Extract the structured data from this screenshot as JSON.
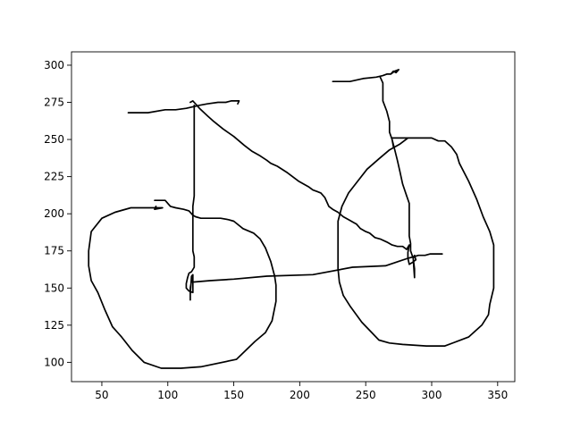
{
  "chart_data": {
    "type": "line",
    "title": "",
    "xlabel": "",
    "ylabel": "",
    "xlim": [
      27,
      363
    ],
    "ylim": [
      87,
      309
    ],
    "xticks": [
      50,
      100,
      150,
      200,
      250,
      300,
      350
    ],
    "yticks": [
      100,
      125,
      150,
      175,
      200,
      225,
      250,
      275,
      300
    ],
    "grid": false,
    "legend": "none",
    "line_color": "#000000",
    "series": [
      {
        "points": [
          [
            70,
            268
          ],
          [
            85,
            268
          ],
          [
            98,
            270
          ],
          [
            106,
            270
          ],
          [
            114,
            271
          ],
          [
            124,
            273
          ],
          [
            130,
            274
          ],
          [
            138,
            275
          ],
          [
            144,
            275
          ],
          [
            148,
            276
          ],
          [
            152,
            276
          ],
          [
            154,
            276
          ],
          [
            153,
            274
          ]
        ]
      },
      {
        "points": [
          [
            225,
            289
          ],
          [
            238,
            289
          ],
          [
            248,
            291
          ],
          [
            258,
            292
          ],
          [
            263,
            293
          ],
          [
            266,
            294
          ],
          [
            269,
            294
          ],
          [
            272,
            296
          ],
          [
            275,
            297
          ],
          [
            273,
            295
          ],
          [
            271,
            296
          ],
          [
            269,
            294
          ]
        ]
      },
      {
        "points": [
          [
            261,
            292
          ],
          [
            263,
            288
          ],
          [
            263,
            283
          ],
          [
            263,
            276
          ],
          [
            266,
            269
          ],
          [
            268,
            262
          ],
          [
            268,
            255
          ],
          [
            270,
            250
          ],
          [
            271,
            245
          ],
          [
            270,
            250
          ],
          [
            272,
            243
          ],
          [
            274,
            236
          ],
          [
            276,
            228
          ],
          [
            278,
            220
          ],
          [
            281,
            212
          ],
          [
            283,
            207
          ],
          [
            283,
            195
          ],
          [
            283,
            185
          ],
          [
            284,
            180
          ],
          [
            284,
            175
          ],
          [
            286,
            170
          ],
          [
            287,
            163
          ],
          [
            287,
            157
          ],
          [
            286,
            170
          ],
          [
            287,
            172
          ],
          [
            288,
            169
          ],
          [
            285,
            167
          ],
          [
            283,
            166
          ],
          [
            282,
            170
          ],
          [
            282,
            174
          ],
          [
            283,
            179
          ],
          [
            281,
            176
          ],
          [
            278,
            178
          ],
          [
            274,
            178
          ],
          [
            270,
            179
          ],
          [
            266,
            181
          ],
          [
            261,
            183
          ],
          [
            257,
            184
          ],
          [
            253,
            187
          ],
          [
            250,
            188
          ],
          [
            246,
            190
          ],
          [
            243,
            193
          ],
          [
            241,
            194
          ],
          [
            237,
            196
          ],
          [
            233,
            198
          ],
          [
            229,
            201
          ],
          [
            225,
            203
          ],
          [
            222,
            205
          ],
          [
            219,
            211
          ],
          [
            216,
            214
          ],
          [
            213,
            215
          ],
          [
            210,
            216
          ],
          [
            207,
            218
          ],
          [
            199,
            222
          ],
          [
            190,
            228
          ],
          [
            183,
            232
          ],
          [
            178,
            234
          ],
          [
            175,
            236
          ],
          [
            170,
            239
          ],
          [
            164,
            242
          ],
          [
            158,
            246
          ],
          [
            150,
            252
          ],
          [
            142,
            257
          ],
          [
            135,
            262
          ],
          [
            130,
            266
          ],
          [
            124,
            271
          ],
          [
            119,
            276
          ],
          [
            117,
            275
          ]
        ]
      },
      {
        "points": [
          [
            120,
            273
          ],
          [
            120,
            268
          ],
          [
            120,
            255
          ],
          [
            120,
            235
          ],
          [
            120,
            212
          ],
          [
            119,
            205
          ],
          [
            119,
            195
          ],
          [
            119,
            185
          ],
          [
            119,
            175
          ],
          [
            120,
            171
          ],
          [
            120,
            164
          ],
          [
            118,
            161
          ],
          [
            116,
            160
          ],
          [
            115,
            157
          ],
          [
            114,
            153
          ],
          [
            114,
            150
          ],
          [
            116,
            148
          ],
          [
            119,
            147
          ],
          [
            119,
            155
          ],
          [
            119,
            159
          ],
          [
            118,
            158
          ],
          [
            117,
            146
          ],
          [
            117,
            142
          ],
          [
            117,
            150
          ],
          [
            118,
            155
          ],
          [
            119,
            154
          ],
          [
            132,
            155
          ],
          [
            150,
            156
          ],
          [
            175,
            158
          ],
          [
            210,
            159
          ],
          [
            240,
            164
          ],
          [
            265,
            165
          ],
          [
            275,
            168
          ],
          [
            282,
            170
          ],
          [
            286,
            171
          ],
          [
            290,
            172
          ],
          [
            295,
            172
          ],
          [
            299,
            173
          ],
          [
            305,
            173
          ],
          [
            308,
            173
          ],
          [
            300,
            173
          ]
        ]
      },
      {
        "points": [
          [
            90,
            209
          ],
          [
            92,
            209
          ],
          [
            98,
            209
          ],
          [
            102,
            205
          ],
          [
            106,
            204
          ],
          [
            112,
            203
          ],
          [
            116,
            202
          ],
          [
            119,
            199
          ],
          [
            121,
            198
          ],
          [
            125,
            197
          ],
          [
            130,
            197
          ],
          [
            135,
            197
          ],
          [
            140,
            197
          ],
          [
            146,
            196
          ],
          [
            150,
            195
          ],
          [
            157,
            190
          ],
          [
            165,
            187
          ],
          [
            170,
            183
          ],
          [
            174,
            177
          ],
          [
            178,
            168
          ],
          [
            181,
            158
          ],
          [
            182,
            152
          ],
          [
            182,
            141
          ],
          [
            179,
            128
          ],
          [
            174,
            120
          ],
          [
            166,
            114
          ],
          [
            152,
            102
          ],
          [
            125,
            97
          ],
          [
            110,
            96
          ],
          [
            95,
            96
          ],
          [
            82,
            100
          ],
          [
            73,
            108
          ],
          [
            65,
            117
          ],
          [
            58,
            124
          ],
          [
            52,
            136
          ],
          [
            47,
            147
          ],
          [
            42,
            155
          ],
          [
            40,
            165
          ],
          [
            40,
            175
          ],
          [
            42,
            188
          ],
          [
            50,
            197
          ],
          [
            60,
            201
          ],
          [
            72,
            204
          ],
          [
            90,
            204
          ],
          [
            96,
            204
          ],
          [
            90,
            203
          ],
          [
            91,
            205
          ]
        ]
      },
      {
        "points": [
          [
            282,
            251
          ],
          [
            287,
            251
          ],
          [
            290,
            251
          ],
          [
            282,
            251
          ],
          [
            276,
            251
          ],
          [
            270,
            251
          ],
          [
            280,
            251
          ],
          [
            300,
            251
          ],
          [
            305,
            249
          ],
          [
            310,
            249
          ],
          [
            315,
            245
          ],
          [
            319,
            240
          ],
          [
            321,
            234
          ],
          [
            328,
            222
          ],
          [
            334,
            210
          ],
          [
            339,
            198
          ],
          [
            344,
            188
          ],
          [
            347,
            179
          ],
          [
            347,
            155
          ],
          [
            347,
            150
          ],
          [
            344,
            139
          ],
          [
            343,
            132
          ],
          [
            338,
            125
          ],
          [
            328,
            117
          ],
          [
            310,
            111
          ],
          [
            296,
            111
          ],
          [
            278,
            112
          ],
          [
            268,
            113
          ],
          [
            260,
            115
          ],
          [
            247,
            127
          ],
          [
            238,
            138
          ],
          [
            233,
            145
          ],
          [
            230,
            154
          ],
          [
            229,
            163
          ],
          [
            229,
            171
          ],
          [
            229,
            183
          ],
          [
            229,
            195
          ],
          [
            232,
            205
          ],
          [
            237,
            214
          ],
          [
            244,
            222
          ],
          [
            251,
            230
          ],
          [
            260,
            237
          ],
          [
            268,
            243
          ],
          [
            276,
            247
          ],
          [
            282,
            251
          ]
        ]
      }
    ]
  }
}
